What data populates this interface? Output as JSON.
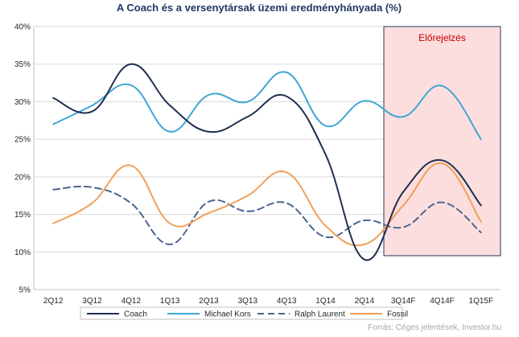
{
  "chart_data": {
    "type": "line",
    "title": "A Coach és a versenytársak üzemi eredményhányada (%)",
    "categories": [
      "2Q12",
      "3Q12",
      "4Q12",
      "1Q13",
      "2Q13",
      "3Q13",
      "4Q13",
      "1Q14",
      "2Q14",
      "3Q14F",
      "4Q14F",
      "1Q15F"
    ],
    "y_ticks": [
      "5%",
      "10%",
      "15%",
      "20%",
      "25%",
      "30%",
      "35%",
      "40%"
    ],
    "ylim": [
      5,
      40
    ],
    "grid": true,
    "legend_position": "bottom",
    "forecast": {
      "label": "Előrejelzés",
      "from_category": "3Q14F",
      "to_category": "1Q15F",
      "fill": "#fddede",
      "stroke": "#1f3864"
    },
    "series": [
      {
        "name": "Coach",
        "color": "#1f2f4f",
        "dash": "solid",
        "values": [
          30.5,
          28.7,
          35.0,
          29.5,
          26.0,
          28.0,
          30.7,
          23.0,
          9.0,
          18.0,
          22.2,
          16.2
        ]
      },
      {
        "name": "Michael Kors",
        "color": "#3fa6d6",
        "dash": "solid",
        "values": [
          27.0,
          29.5,
          32.2,
          26.0,
          30.9,
          30.0,
          33.9,
          26.8,
          30.1,
          28.0,
          32.1,
          25.0
        ]
      },
      {
        "name": "Ralph Laurent",
        "color": "#4b6590",
        "dash": "dashed",
        "values": [
          18.3,
          18.6,
          16.5,
          11.0,
          16.7,
          15.4,
          16.5,
          12.0,
          14.2,
          13.3,
          16.6,
          12.6
        ]
      },
      {
        "name": "Fossil",
        "color": "#f0a05a",
        "dash": "solid",
        "values": [
          13.8,
          16.5,
          21.5,
          13.8,
          15.2,
          17.5,
          20.6,
          13.5,
          11.0,
          16.2,
          21.8,
          14.0
        ]
      }
    ],
    "source": "Forrás: Céges jelentések, Investor.hu"
  }
}
